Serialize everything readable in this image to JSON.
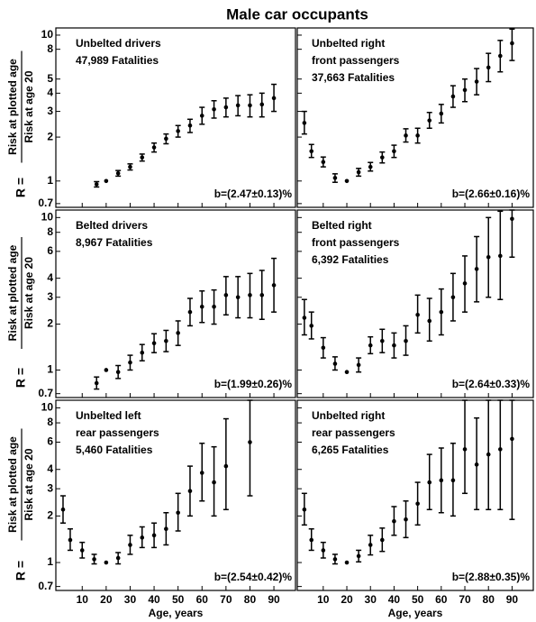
{
  "title": "Male car occupants",
  "chart_data": [
    {
      "type": "errorbar",
      "labels": [
        "Unbelted drivers",
        "47,989 Fatalities"
      ],
      "annotation": "b=(2.47±0.13)%",
      "ylabel": {
        "prefix": "R =",
        "numerator": "Risk at plotted age",
        "denominator": "Risk at age 20"
      },
      "ytick_labels": true,
      "xtick_labels": false,
      "x": [
        16,
        20,
        25,
        30,
        35,
        40,
        45,
        50,
        55,
        60,
        65,
        70,
        75,
        80,
        85,
        90
      ],
      "values": [
        0.95,
        1.0,
        1.13,
        1.25,
        1.45,
        1.7,
        1.95,
        2.2,
        2.4,
        2.8,
        3.1,
        3.2,
        3.3,
        3.3,
        3.35,
        3.7
      ],
      "lower": [
        0.91,
        null,
        1.08,
        1.19,
        1.37,
        1.58,
        1.8,
        2.0,
        2.15,
        2.45,
        2.7,
        2.75,
        2.8,
        2.75,
        2.75,
        3.0
      ],
      "upper": [
        0.99,
        null,
        1.18,
        1.31,
        1.53,
        1.82,
        2.1,
        2.4,
        2.65,
        3.2,
        3.55,
        3.7,
        3.85,
        3.9,
        4.0,
        4.6
      ],
      "xlim": [
        -1,
        99
      ],
      "xticks": [
        10,
        20,
        30,
        40,
        50,
        60,
        70,
        80,
        90
      ],
      "ylim": [
        0.66,
        11.2
      ],
      "log_y": true,
      "yticks": [
        0.7,
        1,
        2,
        3,
        4,
        5,
        8,
        10
      ],
      "color": "#000000"
    },
    {
      "type": "errorbar",
      "labels": [
        "Unbelted right",
        "front passengers",
        "37,663 Fatalities"
      ],
      "annotation": "b=(2.66±0.16)%",
      "ytick_labels": false,
      "xtick_labels": false,
      "x": [
        2,
        5,
        10,
        15,
        20,
        25,
        30,
        35,
        40,
        45,
        50,
        55,
        60,
        65,
        70,
        75,
        80,
        85,
        90
      ],
      "values": [
        2.5,
        1.6,
        1.35,
        1.05,
        1.0,
        1.15,
        1.25,
        1.45,
        1.6,
        2.05,
        2.05,
        2.6,
        2.9,
        3.8,
        4.2,
        4.8,
        6.0,
        7.2,
        8.8
      ],
      "lower": [
        2.1,
        1.45,
        1.25,
        0.98,
        null,
        1.08,
        1.17,
        1.33,
        1.45,
        1.85,
        1.82,
        2.3,
        2.5,
        3.2,
        3.5,
        3.9,
        4.8,
        5.6,
        6.7
      ],
      "upper": [
        3.0,
        1.78,
        1.46,
        1.12,
        null,
        1.22,
        1.34,
        1.58,
        1.76,
        2.28,
        2.3,
        2.95,
        3.35,
        4.5,
        5.0,
        5.9,
        7.5,
        9.2,
        11.0
      ],
      "xlim": [
        -1,
        99
      ],
      "xticks": [
        10,
        20,
        30,
        40,
        50,
        60,
        70,
        80,
        90
      ],
      "ylim": [
        0.66,
        11.2
      ],
      "log_y": true,
      "yticks": [
        0.7,
        1,
        2,
        3,
        4,
        5,
        8,
        10
      ],
      "color": "#000000"
    },
    {
      "type": "errorbar",
      "labels": [
        "Belted drivers",
        "8,967 Fatalities"
      ],
      "annotation": "b=(1.99±0.26)%",
      "ylabel": {
        "prefix": "R =",
        "numerator": "Risk at plotted age",
        "denominator": "Risk at age 20"
      },
      "ytick_labels": true,
      "xtick_labels": false,
      "x": [
        16,
        20,
        25,
        30,
        35,
        40,
        45,
        50,
        55,
        60,
        65,
        70,
        75,
        80,
        85,
        90
      ],
      "values": [
        0.82,
        1.0,
        0.97,
        1.12,
        1.3,
        1.5,
        1.55,
        1.75,
        2.4,
        2.6,
        2.6,
        3.1,
        3.0,
        3.1,
        3.1,
        3.6
      ],
      "lower": [
        0.75,
        null,
        0.88,
        1.0,
        1.15,
        1.3,
        1.32,
        1.45,
        1.95,
        2.05,
        2.0,
        2.3,
        2.2,
        2.2,
        2.15,
        2.4
      ],
      "upper": [
        0.9,
        null,
        1.07,
        1.25,
        1.47,
        1.73,
        1.82,
        2.1,
        2.95,
        3.3,
        3.35,
        4.1,
        4.1,
        4.3,
        4.5,
        5.4
      ],
      "xlim": [
        -1,
        99
      ],
      "xticks": [
        10,
        20,
        30,
        40,
        50,
        60,
        70,
        80,
        90
      ],
      "ylim": [
        0.66,
        11.2
      ],
      "log_y": true,
      "yticks": [
        0.7,
        1,
        2,
        3,
        4,
        6,
        8,
        10
      ],
      "color": "#000000"
    },
    {
      "type": "errorbar",
      "labels": [
        "Belted right",
        "front passengers",
        "6,392 Fatalities"
      ],
      "annotation": "b=(2.64±0.33)%",
      "ytick_labels": false,
      "xtick_labels": false,
      "x": [
        2,
        5,
        10,
        15,
        20,
        25,
        30,
        35,
        40,
        45,
        50,
        55,
        60,
        65,
        70,
        75,
        80,
        85,
        90
      ],
      "values": [
        2.2,
        1.95,
        1.4,
        1.1,
        0.97,
        1.08,
        1.45,
        1.55,
        1.45,
        1.55,
        2.3,
        2.1,
        2.4,
        3.0,
        3.7,
        4.6,
        5.5,
        5.6,
        9.8
      ],
      "lower": [
        1.7,
        1.6,
        1.2,
        1.0,
        null,
        0.97,
        1.28,
        1.3,
        1.2,
        1.25,
        1.75,
        1.55,
        1.7,
        2.1,
        2.4,
        2.8,
        3.0,
        2.9,
        5.5
      ],
      "upper": [
        2.9,
        2.4,
        1.63,
        1.22,
        null,
        1.2,
        1.65,
        1.85,
        1.75,
        1.95,
        3.1,
        2.95,
        3.4,
        4.3,
        5.6,
        7.5,
        10.0,
        11.0,
        11.2
      ],
      "xlim": [
        -1,
        99
      ],
      "xticks": [
        10,
        20,
        30,
        40,
        50,
        60,
        70,
        80,
        90
      ],
      "ylim": [
        0.66,
        11.2
      ],
      "log_y": true,
      "yticks": [
        0.7,
        1,
        2,
        3,
        4,
        6,
        8,
        10
      ],
      "color": "#000000"
    },
    {
      "type": "errorbar",
      "labels": [
        "Unbelted left",
        "rear passengers",
        "5,460 Fatalities"
      ],
      "annotation": "b=(2.54±0.42)%",
      "ylabel": {
        "prefix": "R =",
        "numerator": "Risk at plotted age",
        "denominator": "Risk at age 20"
      },
      "ytick_labels": true,
      "xtick_labels": true,
      "xlabel": "Age, years",
      "x": [
        2,
        5,
        10,
        15,
        20,
        25,
        30,
        35,
        40,
        45,
        50,
        55,
        60,
        65,
        70,
        80
      ],
      "values": [
        2.2,
        1.4,
        1.2,
        1.05,
        1.0,
        1.07,
        1.3,
        1.45,
        1.5,
        1.65,
        2.1,
        2.9,
        3.8,
        3.3,
        4.2,
        6.0
      ],
      "lower": [
        1.8,
        1.2,
        1.07,
        0.98,
        null,
        0.98,
        1.13,
        1.25,
        1.25,
        1.3,
        1.6,
        2.0,
        2.5,
        2.0,
        2.2,
        2.7
      ],
      "upper": [
        2.7,
        1.65,
        1.35,
        1.13,
        null,
        1.16,
        1.5,
        1.7,
        1.8,
        2.1,
        2.8,
        4.2,
        5.9,
        5.6,
        8.5,
        11.2
      ],
      "xlim": [
        -1,
        99
      ],
      "xticks": [
        10,
        20,
        30,
        40,
        50,
        60,
        70,
        80,
        90
      ],
      "ylim": [
        0.66,
        11.2
      ],
      "log_y": true,
      "yticks": [
        0.7,
        1,
        2,
        3,
        4,
        6,
        8,
        10
      ],
      "color": "#000000"
    },
    {
      "type": "errorbar",
      "labels": [
        "Unbelted right",
        "rear passengers",
        "6,265 Fatalities"
      ],
      "annotation": "b=(2.88±0.35)%",
      "ytick_labels": false,
      "xtick_labels": true,
      "xlabel": "Age, years",
      "x": [
        2,
        5,
        10,
        15,
        20,
        25,
        30,
        35,
        40,
        45,
        50,
        55,
        60,
        65,
        70,
        75,
        80,
        85,
        90
      ],
      "values": [
        2.2,
        1.4,
        1.2,
        1.05,
        1.0,
        1.1,
        1.3,
        1.4,
        1.85,
        1.9,
        2.4,
        3.3,
        3.4,
        3.4,
        5.4,
        4.3,
        5.0,
        5.4,
        6.3
      ],
      "lower": [
        1.75,
        1.2,
        1.07,
        0.98,
        null,
        1.01,
        1.12,
        1.18,
        1.5,
        1.45,
        1.75,
        2.2,
        2.1,
        2.0,
        2.8,
        2.2,
        2.2,
        2.2,
        1.9
      ],
      "upper": [
        2.8,
        1.65,
        1.35,
        1.13,
        null,
        1.2,
        1.5,
        1.67,
        2.3,
        2.5,
        3.3,
        5.0,
        5.5,
        5.9,
        11.2,
        8.6,
        11.2,
        11.2,
        11.2
      ],
      "xlim": [
        -1,
        99
      ],
      "xticks": [
        10,
        20,
        30,
        40,
        50,
        60,
        70,
        80,
        90
      ],
      "ylim": [
        0.66,
        11.2
      ],
      "log_y": true,
      "yticks": [
        0.7,
        1,
        2,
        3,
        4,
        6,
        8,
        10
      ],
      "color": "#000000"
    }
  ]
}
